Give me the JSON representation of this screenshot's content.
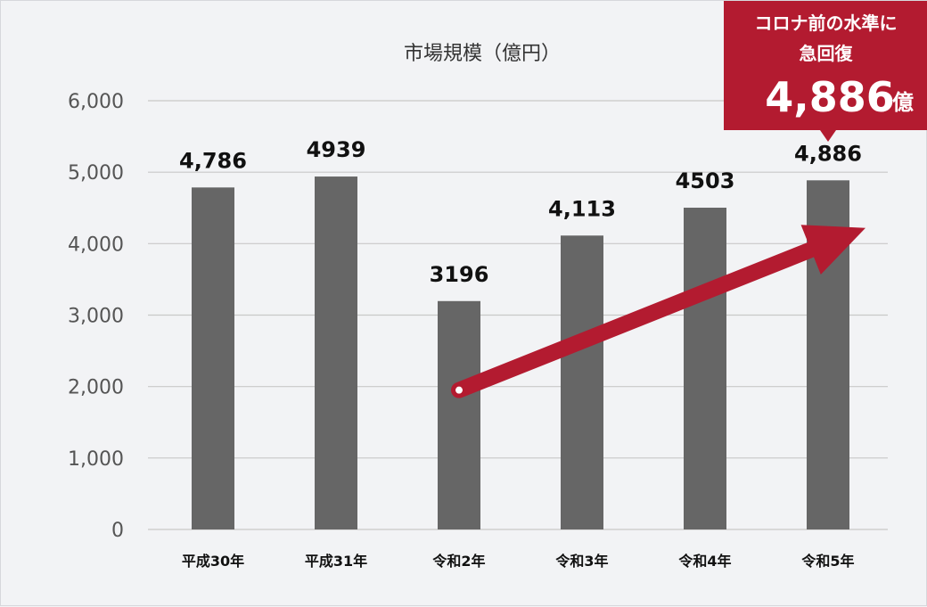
{
  "chart_data": {
    "type": "bar",
    "title": "市場規模（億円）",
    "categories": [
      "平成30年",
      "平成31年",
      "令和2年",
      "令和3年",
      "令和4年",
      "令和5年"
    ],
    "values": [
      4786,
      4939,
      3196,
      4113,
      4503,
      4886
    ],
    "data_labels": [
      "4,786",
      "4939",
      "3196",
      "4,113",
      "4503",
      "4,886"
    ],
    "y_ticks": [
      "0",
      "1,000",
      "2,000",
      "3,000",
      "4,000",
      "5,000",
      "6,000"
    ],
    "ylim": [
      0,
      6000
    ],
    "grid": true,
    "xlabel": "",
    "ylabel": "",
    "bar_color": "#666666",
    "grid_color": "#c8c8c8",
    "arrow": {
      "from_category": "令和2年",
      "to_category": "令和5年",
      "color": "#b31b30"
    },
    "callout": {
      "line1": "コロナ前の水準に",
      "line2": "急回復",
      "value": "4,886",
      "unit": "億",
      "color": "#b31b30",
      "points_to": "令和5年"
    }
  }
}
